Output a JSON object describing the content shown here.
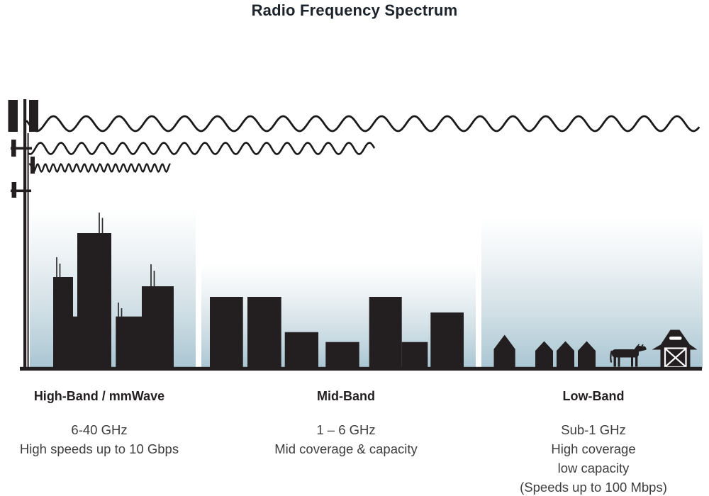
{
  "title": "Radio Frequency Spectrum",
  "bands": [
    {
      "id": "high",
      "name": "High-Band / mmWave",
      "frequency": "6-40 GHz",
      "lines": [
        "High speeds up to 10 Gbps"
      ],
      "scene": "city-skyscrapers"
    },
    {
      "id": "mid",
      "name": "Mid-Band",
      "frequency": "1 – 6 GHz",
      "lines": [
        "Mid coverage & capacity"
      ],
      "scene": "mid-rise-buildings"
    },
    {
      "id": "low",
      "name": "Low-Band",
      "frequency": "Sub-1 GHz",
      "lines": [
        "High coverage",
        "low capacity",
        "(Speeds up to 100 Mbps)"
      ],
      "scene": "rural-houses-cow-barn"
    }
  ],
  "icons": [
    "cell-tower-icon",
    "radio-wave-long-icon",
    "radio-wave-medium-icon",
    "radio-wave-short-icon",
    "city-skyline-icon",
    "house-icon",
    "cow-icon",
    "barn-icon"
  ],
  "colors": {
    "ink": "#231f20",
    "sky_bottom": "#a9c6d2",
    "sky_top": "#ffffff",
    "body_text": "#3f3e3e",
    "title_text": "#1d232b"
  }
}
